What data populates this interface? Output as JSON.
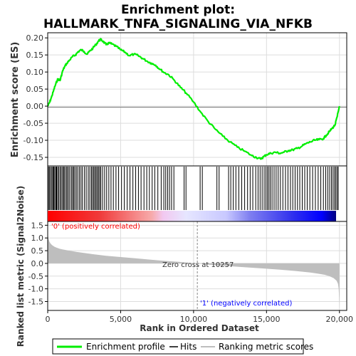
{
  "title_line1": "Enrichment plot:",
  "title_line2": "HALLMARK_TNFA_SIGNALING_VIA_NFKB",
  "colors": {
    "es_line": "#00ee00",
    "hits": "#000000",
    "metric_fill": "#bebebe",
    "red": "#ff0000",
    "blue": "#0000ff",
    "zero_line": "#888888",
    "neg_label": "#0000ff",
    "pos_label": "#ff0000"
  },
  "chart_data": [
    {
      "type": "line",
      "panel": "enrichment",
      "ylabel": "Enrichment score (ES)",
      "ylim": [
        -0.175,
        0.215
      ],
      "xlim": [
        0,
        20500
      ],
      "grid": true,
      "yticks": [
        -0.15,
        -0.1,
        -0.05,
        0.0,
        0.05,
        0.1,
        0.15,
        0.2
      ],
      "ytick_labels": [
        "-0.15",
        "-0.10",
        "-0.05",
        "0.00",
        "0.05",
        "0.10",
        "0.15",
        "0.20"
      ],
      "series": [
        {
          "name": "Enrichment profile",
          "x": [
            0,
            120,
            250,
            400,
            550,
            700,
            850,
            1000,
            1150,
            1300,
            1500,
            1700,
            1900,
            2100,
            2300,
            2500,
            2700,
            2900,
            3100,
            3300,
            3500,
            3650,
            3800,
            4000,
            4200,
            4400,
            4700,
            5000,
            5300,
            5600,
            5900,
            6200,
            6500,
            6800,
            7100,
            7400,
            7700,
            8000,
            8300,
            8700,
            9100,
            9500,
            10000,
            10500,
            11000,
            11500,
            12000,
            12500,
            13000,
            13500,
            14000,
            14300,
            14600,
            14800,
            15000,
            15300,
            15600,
            15900,
            16200,
            16500,
            16800,
            17100,
            17400,
            17700,
            18000,
            18300,
            18600,
            18900,
            19100,
            19300,
            19500,
            19700,
            19850,
            20000
          ],
          "y": [
            0.0,
            0.01,
            0.025,
            0.045,
            0.065,
            0.08,
            0.075,
            0.1,
            0.115,
            0.125,
            0.135,
            0.145,
            0.15,
            0.16,
            0.165,
            0.16,
            0.152,
            0.162,
            0.17,
            0.18,
            0.192,
            0.195,
            0.19,
            0.18,
            0.185,
            0.182,
            0.175,
            0.165,
            0.158,
            0.148,
            0.152,
            0.148,
            0.14,
            0.132,
            0.126,
            0.12,
            0.108,
            0.098,
            0.092,
            0.075,
            0.055,
            0.038,
            0.012,
            -0.018,
            -0.045,
            -0.068,
            -0.088,
            -0.105,
            -0.12,
            -0.132,
            -0.145,
            -0.15,
            -0.155,
            -0.148,
            -0.142,
            -0.138,
            -0.135,
            -0.138,
            -0.135,
            -0.13,
            -0.128,
            -0.124,
            -0.118,
            -0.11,
            -0.105,
            -0.1,
            -0.098,
            -0.095,
            -0.085,
            -0.075,
            -0.065,
            -0.055,
            -0.03,
            0.0
          ]
        }
      ]
    },
    {
      "type": "scatter",
      "panel": "hits",
      "series": [
        {
          "name": "Hits",
          "x": [
            60,
            130,
            210,
            290,
            360,
            420,
            480,
            560,
            610,
            680,
            760,
            850,
            930,
            1020,
            1090,
            1160,
            1260,
            1330,
            1420,
            1510,
            1620,
            1700,
            1780,
            1860,
            1960,
            2060,
            2170,
            2280,
            2380,
            2520,
            2640,
            2780,
            2890,
            3000,
            3080,
            3160,
            3240,
            3320,
            3400,
            3480,
            3560,
            3640,
            3760,
            3900,
            4040,
            4190,
            4340,
            4500,
            4680,
            4860,
            5060,
            5250,
            5450,
            5640,
            5840,
            6030,
            6220,
            6400,
            6600,
            6790,
            6970,
            7160,
            7340,
            7550,
            7780,
            7960,
            8090,
            8220,
            8350,
            8490,
            8650,
            9350,
            9480,
            10450,
            10600,
            11600,
            11750,
            12400,
            12550,
            12720,
            12900,
            13100,
            13300,
            13500,
            13700,
            13880,
            14060,
            14260,
            14420,
            14560,
            14700,
            14840,
            14960,
            15060,
            15160,
            15260,
            15380,
            15520,
            15660,
            15800,
            15950,
            16120,
            16300,
            16470,
            16640,
            16800,
            16960,
            17120,
            17280,
            17450,
            17620,
            17790,
            17970,
            18160,
            18350,
            18540,
            18720,
            18900,
            19060,
            19200,
            19330,
            19450,
            19560,
            19660,
            19750,
            19840,
            19920
          ]
        }
      ]
    },
    {
      "type": "area",
      "panel": "ranked_metric",
      "ylabel": "Ranked list metric (Signal2Noise)",
      "xlabel": "Rank in Ordered Dataset",
      "xlim": [
        0,
        20500
      ],
      "ylim": [
        -1.85,
        1.65
      ],
      "yticks": [
        -1.5,
        -1.0,
        -0.5,
        0.0,
        0.5,
        1.0,
        1.5
      ],
      "ytick_labels": [
        "-1.5",
        "-1.0",
        "-0.5",
        "0.0",
        "0.5",
        "1.0",
        "1.5"
      ],
      "xticks": [
        0,
        5000,
        10000,
        15000,
        20000
      ],
      "xtick_labels": [
        "0",
        "5,000",
        "10,000",
        "15,000",
        "20,000"
      ],
      "zero_cross": 10257,
      "series": [
        {
          "name": "Ranking metric scores",
          "x": [
            0,
            20,
            60,
            120,
            200,
            300,
            450,
            600,
            800,
            1000,
            1500,
            2000,
            3000,
            4000,
            5000,
            6000,
            7000,
            8000,
            9000,
            10000,
            10257,
            11000,
            12000,
            13000,
            14000,
            15000,
            16000,
            17000,
            18000,
            18500,
            19000,
            19300,
            19600,
            19800,
            19900,
            19950,
            19980,
            20000
          ],
          "y": [
            1.55,
            1.1,
            0.95,
            0.85,
            0.78,
            0.72,
            0.66,
            0.62,
            0.58,
            0.55,
            0.5,
            0.45,
            0.37,
            0.3,
            0.25,
            0.2,
            0.15,
            0.1,
            0.06,
            0.01,
            0.0,
            -0.05,
            -0.09,
            -0.13,
            -0.17,
            -0.21,
            -0.25,
            -0.3,
            -0.36,
            -0.4,
            -0.45,
            -0.5,
            -0.58,
            -0.68,
            -0.8,
            -1.0,
            -1.35,
            -1.75
          ]
        }
      ]
    }
  ],
  "annotations": {
    "pos_label": "'0' (positively correlated)",
    "neg_label": "'1' (negatively correlated)",
    "zero_cross_label": "Zero cross at 10257"
  },
  "legend": {
    "placement": "bottom",
    "items": [
      {
        "label": "Enrichment profile",
        "kind": "line",
        "color": "#00ee00"
      },
      {
        "label": "Hits",
        "kind": "line",
        "color": "#000000"
      },
      {
        "label": "Ranking metric scores",
        "kind": "line",
        "color": "#bebebe"
      }
    ]
  }
}
